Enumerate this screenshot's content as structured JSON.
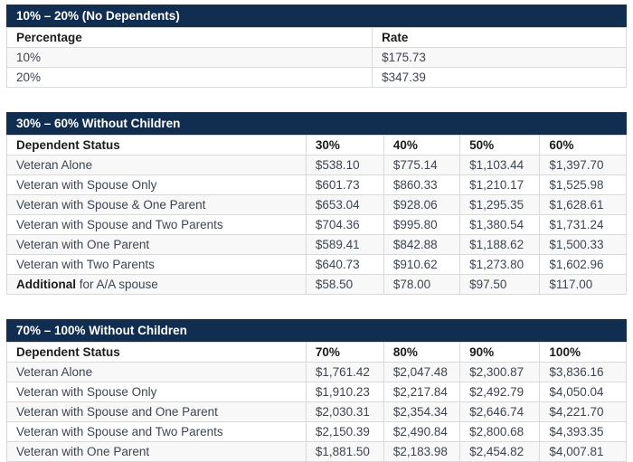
{
  "colors": {
    "title_bg": "#112e51",
    "title_text": "#ffffff",
    "row_alt_bg": "#f8f8f8",
    "border": "#d9d9d9",
    "cell_text": "#3d4551",
    "header_text": "#1b1b1b"
  },
  "tables": [
    {
      "title": "10% – 20% (No Dependents)",
      "columns": [
        "Percentage",
        "Rate"
      ],
      "rows": [
        [
          "10%",
          "$175.73"
        ],
        [
          "20%",
          "$347.39"
        ]
      ]
    },
    {
      "title": "30% – 60% Without Children",
      "columns": [
        "Dependent Status",
        "30%",
        "40%",
        "50%",
        "60%"
      ],
      "rows": [
        [
          "Veteran Alone",
          "$538.10",
          "$775.14",
          "$1,103.44",
          "$1,397.70"
        ],
        [
          "Veteran with Spouse Only",
          "$601.73",
          "$860.33",
          "$1,210.17",
          "$1,525.98"
        ],
        [
          "Veteran with Spouse & One Parent",
          "$653.04",
          "$928.06",
          "$1,295.35",
          "$1,628.61"
        ],
        [
          "Veteran with Spouse and Two Parents",
          "$704.36",
          "$995.80",
          "$1,380.54",
          "$1,731.24"
        ],
        [
          "Veteran with One Parent",
          "$589.41",
          "$842.88",
          "$1,188.62",
          "$1,500.33"
        ],
        [
          "Veteran with Two Parents",
          "$640.73",
          "$910.62",
          "$1,273.80",
          "$1,602.96"
        ],
        [
          {
            "bold": "Additional",
            "text": " for A/A spouse"
          },
          "$58.50",
          "$78.00",
          "$97.50",
          "$117.00"
        ]
      ]
    },
    {
      "title": "70% – 100% Without Children",
      "columns": [
        "Dependent Status",
        "70%",
        "80%",
        "90%",
        "100%"
      ],
      "rows": [
        [
          "Veteran Alone",
          "$1,761.42",
          "$2,047.48",
          "$2,300.87",
          "$3,836.16"
        ],
        [
          "Veteran with Spouse Only",
          "$1,910.23",
          "$2,217.84",
          "$2,492.79",
          "$4,050.04"
        ],
        [
          "Veteran with Spouse and One Parent",
          "$2,030.31",
          "$2,354.34",
          "$2,646.74",
          "$4,221.70"
        ],
        [
          "Veteran with Spouse and Two Parents",
          "$2,150.39",
          "$2,490.84",
          "$2,800.68",
          "$4,393.35"
        ],
        [
          "Veteran with One Parent",
          "$1,881.50",
          "$2,183.98",
          "$2,454.82",
          "$4,007.81"
        ]
      ]
    }
  ]
}
